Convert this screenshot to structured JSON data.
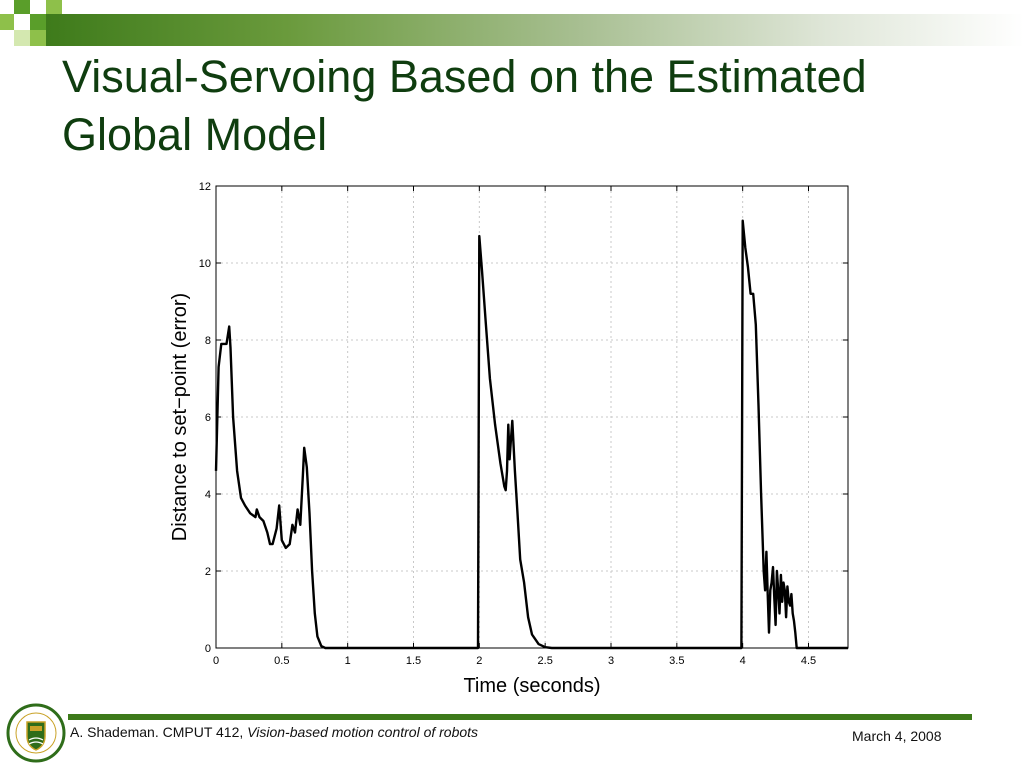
{
  "slide": {
    "title": "Visual-Servoing Based on the Estimated Global Model",
    "footer_author": "A. Shademan. CMPUT 412,",
    "footer_course_title": "Vision-based motion control of robots",
    "footer_date": "March 4, 2008",
    "logo_text": "UNIVERSITY OF ALBERTA",
    "accent_color": "#3d7a1a",
    "title_color": "#0f3d0f"
  },
  "chart_data": {
    "type": "line",
    "title": "",
    "xlabel": "Time (seconds)",
    "ylabel": "Distance to set−point (error)",
    "xlim": [
      0,
      4.8
    ],
    "ylim": [
      0,
      12
    ],
    "xticks": [
      0,
      0.5,
      1,
      1.5,
      2,
      2.5,
      3,
      3.5,
      4,
      4.5
    ],
    "yticks": [
      0,
      2,
      4,
      6,
      8,
      10,
      12
    ],
    "grid": true,
    "series": [
      {
        "color": "#000000",
        "x": [
          0,
          0.02,
          0.04,
          0.06,
          0.08,
          0.1,
          0.11,
          0.13,
          0.16,
          0.19,
          0.22,
          0.26,
          0.3,
          0.31,
          0.33,
          0.36,
          0.39,
          0.41,
          0.43,
          0.46,
          0.48,
          0.5,
          0.53,
          0.56,
          0.58,
          0.6,
          0.62,
          0.64,
          0.66,
          0.67,
          0.69,
          0.71,
          0.73,
          0.75,
          0.77,
          0.8,
          0.83,
          0.9,
          1.0,
          1.5,
          1.99,
          2.0,
          2.02,
          2.05,
          2.08,
          2.12,
          2.16,
          2.19,
          2.2,
          2.21,
          2.22,
          2.23,
          2.24,
          2.25,
          2.27,
          2.29,
          2.31,
          2.34,
          2.37,
          2.4,
          2.45,
          2.5,
          2.55,
          3.0,
          3.5,
          3.99,
          4.0,
          4.02,
          4.04,
          4.06,
          4.08,
          4.09,
          4.1,
          4.12,
          4.14,
          4.16,
          4.17,
          4.18,
          4.19,
          4.2,
          4.21,
          4.22,
          4.23,
          4.24,
          4.25,
          4.26,
          4.27,
          4.28,
          4.29,
          4.3,
          4.31,
          4.32,
          4.33,
          4.34,
          4.35,
          4.36,
          4.37,
          4.38,
          4.39,
          4.4,
          4.41,
          4.42,
          4.43,
          4.44,
          4.45,
          4.5,
          4.8
        ],
        "y": [
          4.6,
          7.3,
          7.9,
          7.9,
          7.9,
          8.35,
          7.8,
          6.0,
          4.6,
          3.9,
          3.7,
          3.5,
          3.4,
          3.6,
          3.4,
          3.3,
          3.0,
          2.7,
          2.7,
          3.1,
          3.7,
          2.8,
          2.6,
          2.7,
          3.2,
          3.0,
          3.6,
          3.2,
          4.5,
          5.2,
          4.7,
          3.5,
          2.0,
          0.9,
          0.3,
          0.05,
          0.0,
          0.0,
          0.0,
          0.0,
          0.0,
          10.7,
          9.8,
          8.4,
          7.0,
          5.8,
          4.8,
          4.2,
          4.1,
          4.6,
          5.8,
          4.9,
          5.4,
          5.9,
          4.6,
          3.5,
          2.3,
          1.7,
          0.8,
          0.35,
          0.1,
          0.02,
          0.0,
          0.0,
          0.0,
          0.0,
          11.1,
          10.4,
          9.9,
          9.2,
          9.2,
          8.8,
          8.4,
          6.3,
          4.0,
          2.0,
          1.5,
          2.5,
          1.4,
          0.4,
          1.5,
          1.7,
          2.1,
          1.3,
          0.6,
          2.0,
          1.5,
          0.9,
          1.9,
          1.2,
          1.7,
          1.5,
          0.8,
          1.6,
          1.2,
          1.1,
          1.4,
          0.9,
          0.7,
          0.4,
          0.0,
          0.0,
          0.0,
          0.0,
          0.0,
          0.0,
          0.0
        ]
      }
    ]
  }
}
